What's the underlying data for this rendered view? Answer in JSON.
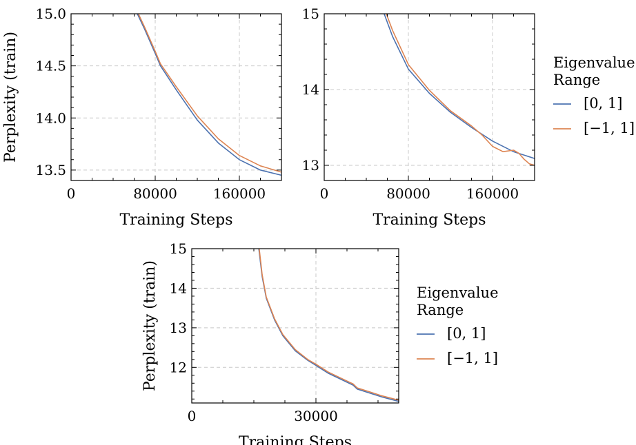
{
  "chart_data": [
    {
      "type": "line",
      "xlabel": "Training Steps",
      "ylabel": "Perplexity (train)",
      "xlim": [
        0,
        200000
      ],
      "ylim": [
        13.4,
        15.0
      ],
      "xticks": [
        0,
        80000,
        160000
      ],
      "xtick_labels": [
        "0",
        "80000",
        "160000"
      ],
      "yticks": [
        13.5,
        14.0,
        14.5,
        15.0
      ],
      "ytick_labels": [
        "13.5",
        "14.0",
        "14.5",
        "15.0"
      ],
      "grid": true,
      "series": [
        {
          "name": "[0, 1]",
          "color": "#4c72b0",
          "x": [
            63000,
            70000,
            80000,
            85000,
            100000,
            120000,
            140000,
            160000,
            180000,
            200000
          ],
          "y": [
            15.0,
            14.85,
            14.62,
            14.5,
            14.27,
            13.98,
            13.76,
            13.6,
            13.5,
            13.45
          ]
        },
        {
          "name": "[−1, 1]",
          "color": "#dd8452",
          "x": [
            64000,
            70000,
            80000,
            85000,
            100000,
            120000,
            140000,
            160000,
            180000,
            200000
          ],
          "y": [
            15.0,
            14.87,
            14.64,
            14.52,
            14.3,
            14.02,
            13.8,
            13.64,
            13.54,
            13.48
          ]
        }
      ]
    },
    {
      "type": "line",
      "xlabel": "Training Steps",
      "ylabel": "",
      "xlim": [
        0,
        200000
      ],
      "ylim": [
        12.8,
        15.0
      ],
      "xticks": [
        0,
        80000,
        160000
      ],
      "xtick_labels": [
        "0",
        "80000",
        "160000"
      ],
      "yticks": [
        13,
        14,
        15
      ],
      "ytick_labels": [
        "13",
        "14",
        "15"
      ],
      "grid": true,
      "series": [
        {
          "name": "[0, 1]",
          "color": "#4c72b0",
          "x": [
            57000,
            65000,
            80000,
            100000,
            120000,
            140000,
            160000,
            180000,
            200000
          ],
          "y": [
            15.0,
            14.7,
            14.27,
            13.95,
            13.7,
            13.5,
            13.32,
            13.18,
            13.09
          ]
        },
        {
          "name": "[−1, 1]",
          "color": "#dd8452",
          "x": [
            59000,
            65000,
            80000,
            100000,
            120000,
            140000,
            150000,
            160000,
            170000,
            180000,
            185000,
            190000,
            195000,
            200000
          ],
          "y": [
            15.0,
            14.78,
            14.33,
            13.99,
            13.72,
            13.52,
            13.4,
            13.25,
            13.18,
            13.2,
            13.16,
            13.08,
            13.02,
            13.0
          ]
        }
      ]
    },
    {
      "type": "line",
      "xlabel": "Training Steps",
      "ylabel": "Perplexity (train)",
      "xlim": [
        0,
        50000
      ],
      "ylim": [
        11.1,
        15.0
      ],
      "xticks": [
        0,
        30000
      ],
      "xtick_labels": [
        "0",
        "30000"
      ],
      "yticks": [
        12,
        13,
        14,
        15
      ],
      "ytick_labels": [
        "12",
        "13",
        "14",
        "15"
      ],
      "grid": true,
      "series": [
        {
          "name": "[0, 1]",
          "color": "#4c72b0",
          "x": [
            16200,
            17000,
            18000,
            20000,
            22000,
            25000,
            28000,
            30000,
            33000,
            36000,
            39000,
            40000,
            43000,
            46000,
            50000
          ],
          "y": [
            15.0,
            14.3,
            13.75,
            13.2,
            12.8,
            12.42,
            12.18,
            12.05,
            11.85,
            11.7,
            11.55,
            11.45,
            11.35,
            11.25,
            11.14
          ]
        },
        {
          "name": "[−1, 1]",
          "color": "#dd8452",
          "x": [
            16300,
            17000,
            18000,
            20000,
            22000,
            25000,
            28000,
            30000,
            33000,
            36000,
            39000,
            40000,
            43000,
            46000,
            50000
          ],
          "y": [
            15.0,
            14.35,
            13.78,
            13.23,
            12.83,
            12.45,
            12.2,
            12.08,
            11.88,
            11.73,
            11.58,
            11.48,
            11.38,
            11.28,
            11.17
          ]
        }
      ]
    }
  ],
  "legends": [
    {
      "title_line1": "Eigenvalue",
      "title_line2": "Range",
      "entries": [
        "[0, 1]",
        "[−1, 1]"
      ]
    },
    {
      "title_line1": "Eigenvalue",
      "title_line2": "Range",
      "entries": [
        "[0, 1]",
        "[−1, 1]"
      ]
    }
  ]
}
